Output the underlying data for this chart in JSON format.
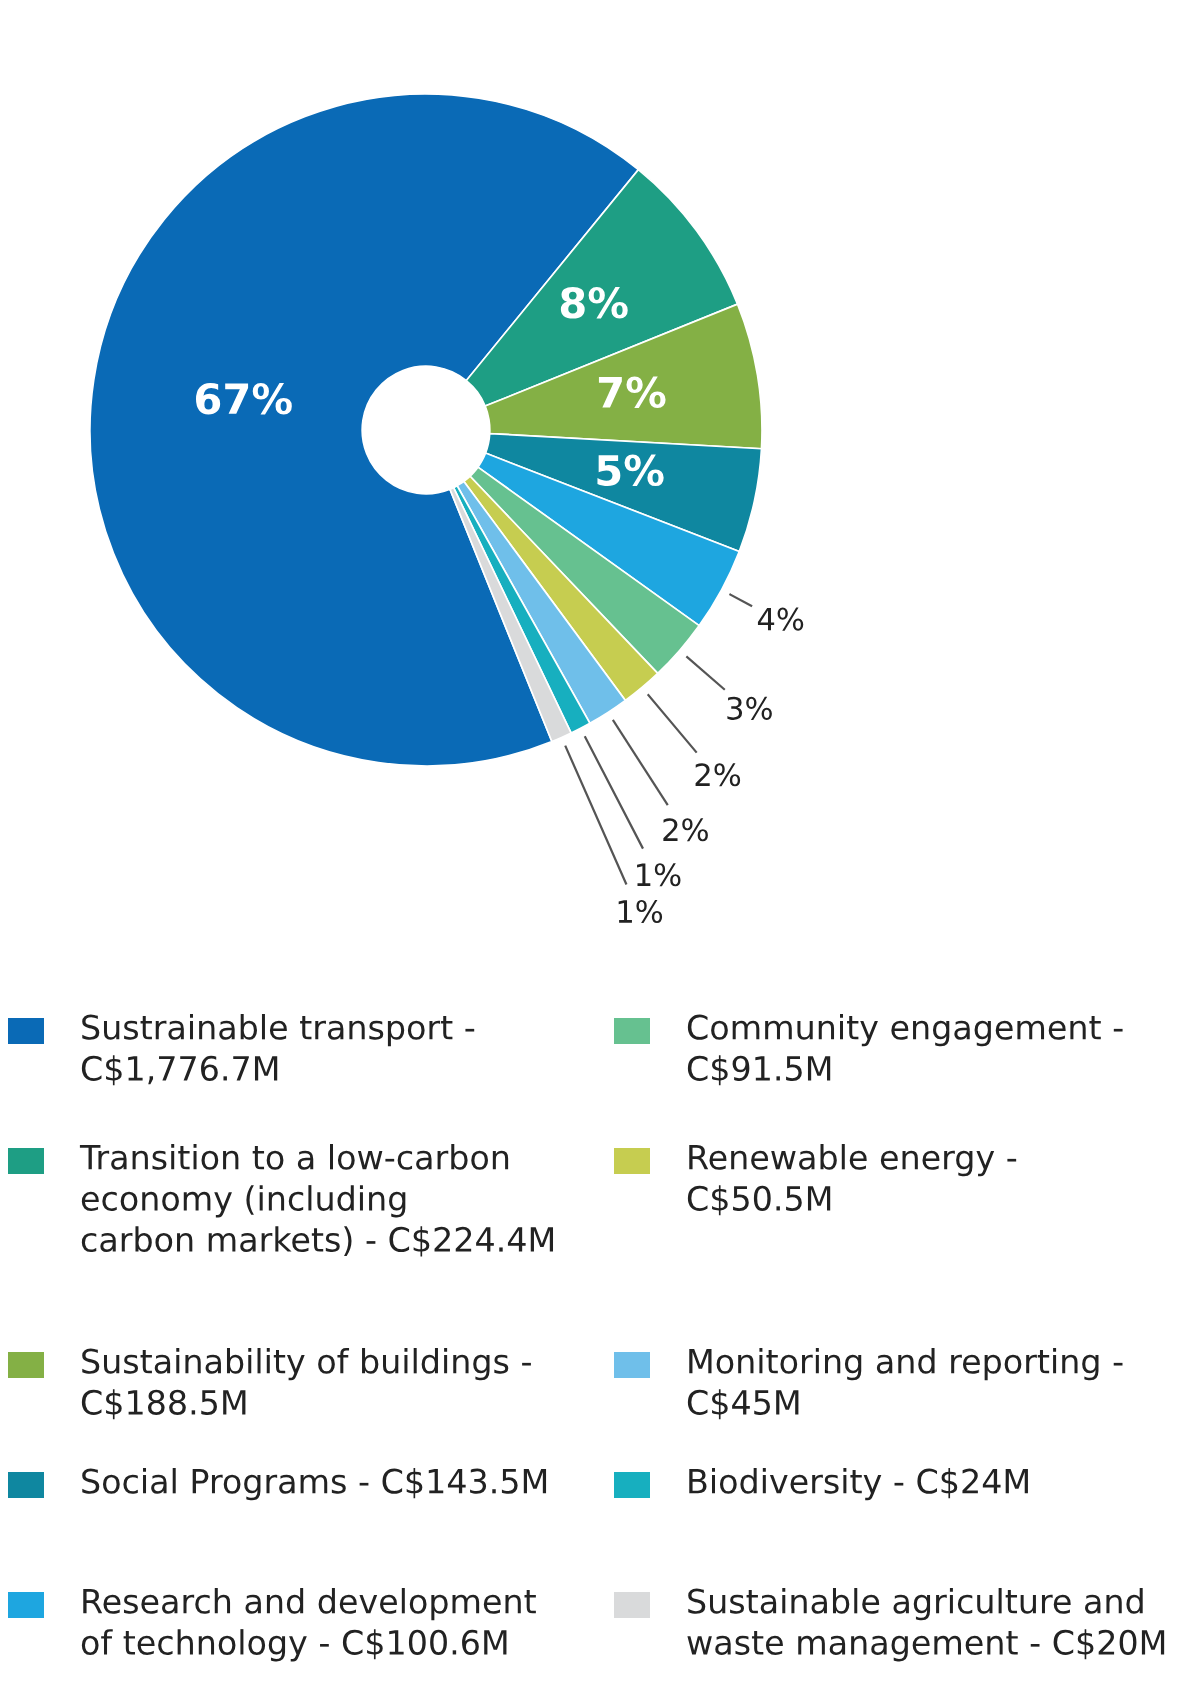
{
  "chart_data": {
    "type": "donut",
    "categories": [
      "Sustrainable transport -\nC$1,776.7M",
      "Transition to a low-carbon\neconomy (including\ncarbon markets) - C$224.4M",
      "Sustainability of buildings -\nC$188.5M",
      "Social Programs - C$143.5M",
      "Research and development\nof technology - C$100.6M",
      "Community engagement -\nC$91.5M",
      "Renewable energy -\nC$50.5M",
      "Monitoring and reporting -\nC$45M",
      "Biodiversity - C$24M",
      "Sustainable agriculture and\nwaste management - C$20M"
    ],
    "values": [
      67,
      8,
      7,
      5,
      4,
      3,
      2,
      2,
      1,
      1
    ],
    "value_labels": [
      "67%",
      "8%",
      "7%",
      "5%",
      "4%",
      "3%",
      "2%",
      "2%",
      "1%",
      "1%"
    ],
    "colors": [
      "#0a6ab6",
      "#1e9e84",
      "#84b045",
      "#0f87a0",
      "#1ea6e0",
      "#66c190",
      "#c6cd50",
      "#6fbfea",
      "#17afbf",
      "#d9dadb"
    ],
    "legend": "bottom"
  }
}
